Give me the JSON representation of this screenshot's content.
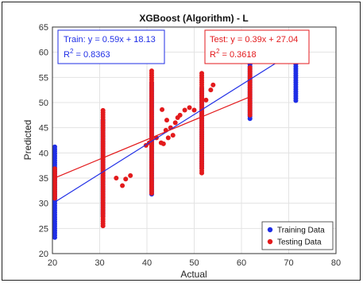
{
  "chart_data": {
    "type": "scatter",
    "title": "XGBoost (Algorithm) - L",
    "xlabel": "Actual",
    "ylabel": "Predicted",
    "xlim": [
      20,
      80
    ],
    "ylim": [
      20,
      65
    ],
    "xticks": [
      20,
      30,
      40,
      50,
      60,
      70,
      80
    ],
    "yticks": [
      20,
      25,
      30,
      35,
      40,
      45,
      50,
      55,
      60,
      65
    ],
    "grid": true,
    "legend_position": "bottom-right",
    "colors": {
      "train": "#1f2ee6",
      "test": "#e31a1c",
      "train_text": "#1f2ee6",
      "test_text": "#e31a1c"
    },
    "annotations": {
      "train": {
        "equation": "Train: y = 0.59x + 18.13",
        "r2_label": "R",
        "r2_sup": "2",
        "r2_value": " = 0.8363"
      },
      "test": {
        "equation": "Test: y = 0.39x + 27.04",
        "r2_label": "R",
        "r2_sup": "2",
        "r2_value": " = 0.3618"
      }
    },
    "series": [
      {
        "name": "Training Data",
        "color": "#1f2ee6",
        "columns": [
          {
            "x": 20.5,
            "ymin": 23.2,
            "ymax": 41.2
          },
          {
            "x": 30.7,
            "ymin": 27.5,
            "ymax": 46.5
          },
          {
            "x": 41.0,
            "ymin": 31.8,
            "ymax": 54.0
          },
          {
            "x": 51.6,
            "ymin": 37.0,
            "ymax": 53.0
          },
          {
            "x": 61.8,
            "ymin": 46.8,
            "ymax": 58.8
          },
          {
            "x": 71.5,
            "ymin": 50.4,
            "ymax": 61.0
          }
        ],
        "fit": {
          "slope": 0.59,
          "intercept": 18.13,
          "x_range": [
            20.5,
            71.5
          ]
        }
      },
      {
        "name": "Testing Data",
        "color": "#e31a1c",
        "columns": [
          {
            "x": 20.5,
            "ymin": 31.0,
            "ymax": 37.0
          },
          {
            "x": 30.7,
            "ymin": 25.5,
            "ymax": 48.5
          },
          {
            "x": 41.0,
            "ymin": 32.0,
            "ymax": 56.3
          },
          {
            "x": 51.6,
            "ymin": 36.0,
            "ymax": 56.0
          },
          {
            "x": 61.8,
            "ymin": 47.5,
            "ymax": 57.0
          }
        ],
        "scattered": [
          {
            "x": 33.5,
            "y": 35.0
          },
          {
            "x": 34.8,
            "y": 33.5
          },
          {
            "x": 35.5,
            "y": 34.8
          },
          {
            "x": 36.5,
            "y": 35.5
          },
          {
            "x": 39.8,
            "y": 41.5
          },
          {
            "x": 40.5,
            "y": 42.0
          },
          {
            "x": 42.0,
            "y": 43.0
          },
          {
            "x": 43.0,
            "y": 42.0
          },
          {
            "x": 43.5,
            "y": 41.8
          },
          {
            "x": 44.0,
            "y": 44.5
          },
          {
            "x": 44.5,
            "y": 43.0
          },
          {
            "x": 45.0,
            "y": 45.0
          },
          {
            "x": 45.5,
            "y": 43.5
          },
          {
            "x": 46.0,
            "y": 46.0
          },
          {
            "x": 46.5,
            "y": 47.0
          },
          {
            "x": 47.0,
            "y": 47.5
          },
          {
            "x": 48.0,
            "y": 48.5
          },
          {
            "x": 49.0,
            "y": 49.0
          },
          {
            "x": 50.0,
            "y": 48.5
          },
          {
            "x": 52.5,
            "y": 50.5
          },
          {
            "x": 53.5,
            "y": 52.5
          },
          {
            "x": 54.0,
            "y": 53.5
          },
          {
            "x": 43.2,
            "y": 48.6
          },
          {
            "x": 44.2,
            "y": 46.5
          }
        ],
        "fit": {
          "slope": 0.39,
          "intercept": 27.04,
          "x_range": [
            20.5,
            61.8
          ]
        }
      }
    ]
  }
}
